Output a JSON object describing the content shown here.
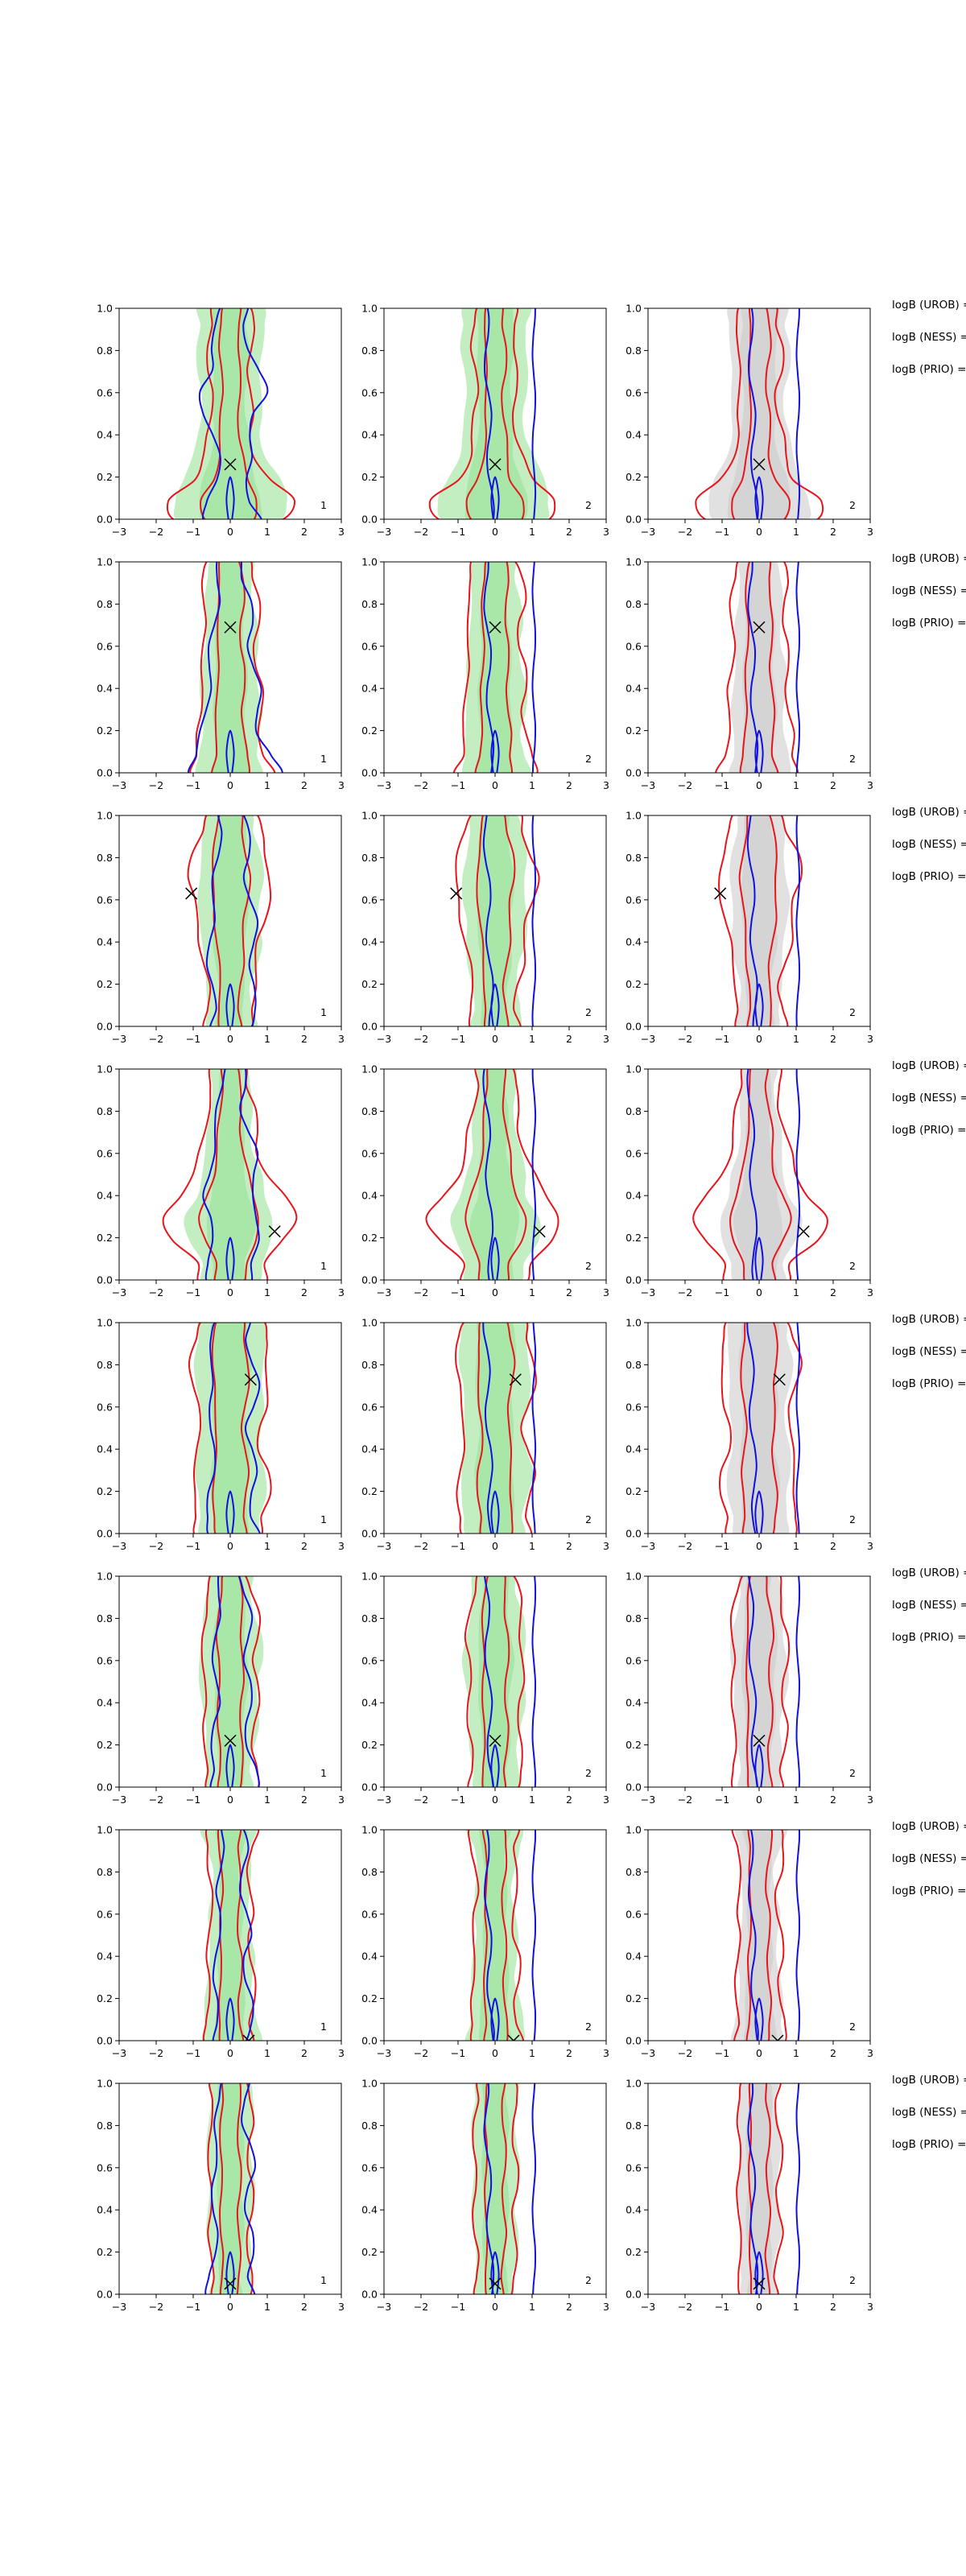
{
  "figure": {
    "rows": 8,
    "cols": 3
  },
  "chart_data": [
    {
      "type": "contour",
      "row": 1,
      "x_ticks": [
        "−3",
        "−2",
        "−1",
        "0",
        "1",
        "2",
        "3"
      ],
      "y_ticks": [
        "0.0",
        "0.2",
        "0.4",
        "0.6",
        "0.8",
        "1.0"
      ],
      "xlim": [
        -3,
        3
      ],
      "ylim": [
        0,
        1
      ],
      "marker": {
        "symbol": "X",
        "x": 0.0,
        "y": 0.26
      },
      "panel_labels": [
        "1",
        "2",
        "2"
      ],
      "side_labels": [
        "logB (UROB) =",
        "logB (NESS) =",
        "logB (PRIO) ="
      ]
    },
    {
      "type": "contour",
      "row": 2,
      "x_ticks": [
        "−3",
        "−2",
        "−1",
        "0",
        "1",
        "2",
        "3"
      ],
      "y_ticks": [
        "0.0",
        "0.2",
        "0.4",
        "0.6",
        "0.8",
        "1.0"
      ],
      "xlim": [
        -3,
        3
      ],
      "ylim": [
        0,
        1
      ],
      "marker": {
        "symbol": "X",
        "x": 0.0,
        "y": 0.69
      },
      "panel_labels": [
        "1",
        "2",
        "2"
      ],
      "side_labels": [
        "logB (UROB) =",
        "logB (NESS) =",
        "logB (PRIO) ="
      ]
    },
    {
      "type": "contour",
      "row": 3,
      "x_ticks": [
        "−3",
        "−2",
        "−1",
        "0",
        "1",
        "2",
        "3"
      ],
      "y_ticks": [
        "0.0",
        "0.2",
        "0.4",
        "0.6",
        "0.8",
        "1.0"
      ],
      "xlim": [
        -3,
        3
      ],
      "ylim": [
        0,
        1
      ],
      "marker": {
        "symbol": "X",
        "x": -1.05,
        "y": 0.63
      },
      "panel_labels": [
        "1",
        "2",
        "2"
      ],
      "side_labels": [
        "logB (UROB) =",
        "logB (NESS) =",
        "logB (PRIO) ="
      ]
    },
    {
      "type": "contour",
      "row": 4,
      "x_ticks": [
        "−3",
        "−2",
        "−1",
        "0",
        "1",
        "2",
        "3"
      ],
      "y_ticks": [
        "0.0",
        "0.2",
        "0.4",
        "0.6",
        "0.8",
        "1.0"
      ],
      "xlim": [
        -3,
        3
      ],
      "ylim": [
        0,
        1
      ],
      "marker": {
        "symbol": "X",
        "x": 1.2,
        "y": 0.23
      },
      "panel_labels": [
        "1",
        "2",
        "2"
      ],
      "side_labels": [
        "logB (UROB) =",
        "logB (NESS) =",
        "logB (PRIO) ="
      ]
    },
    {
      "type": "contour",
      "row": 5,
      "x_ticks": [
        "−3",
        "−2",
        "−1",
        "0",
        "1",
        "2",
        "3"
      ],
      "y_ticks": [
        "0.0",
        "0.2",
        "0.4",
        "0.6",
        "0.8",
        "1.0"
      ],
      "xlim": [
        -3,
        3
      ],
      "ylim": [
        0,
        1
      ],
      "marker": {
        "symbol": "X",
        "x": 0.55,
        "y": 0.73
      },
      "panel_labels": [
        "1",
        "2",
        "2"
      ],
      "side_labels": [
        "logB (UROB) =",
        "logB (NESS) =",
        "logB (PRIO) ="
      ]
    },
    {
      "type": "contour",
      "row": 6,
      "x_ticks": [
        "−3",
        "−2",
        "−1",
        "0",
        "1",
        "2",
        "3"
      ],
      "y_ticks": [
        "0.0",
        "0.2",
        "0.4",
        "0.6",
        "0.8",
        "1.0"
      ],
      "xlim": [
        -3,
        3
      ],
      "ylim": [
        0,
        1
      ],
      "marker": {
        "symbol": "X",
        "x": 0.0,
        "y": 0.22
      },
      "panel_labels": [
        "1",
        "2",
        "2"
      ],
      "side_labels": [
        "logB (UROB) =",
        "logB (NESS) =",
        "logB (PRIO) ="
      ]
    },
    {
      "type": "contour",
      "row": 7,
      "x_ticks": [
        "−3",
        "−2",
        "−1",
        "0",
        "1",
        "2",
        "3"
      ],
      "y_ticks": [
        "0.0",
        "0.2",
        "0.4",
        "0.6",
        "0.8",
        "1.0"
      ],
      "xlim": [
        -3,
        3
      ],
      "ylim": [
        0,
        1
      ],
      "marker": {
        "symbol": "X",
        "x": 0.5,
        "y": 0.0
      },
      "panel_labels": [
        "1",
        "2",
        "2"
      ],
      "side_labels": [
        "logB (UROB) =",
        "logB (NESS) =",
        "logB (PRIO) ="
      ]
    },
    {
      "type": "contour",
      "row": 8,
      "x_ticks": [
        "−3",
        "−2",
        "−1",
        "0",
        "1",
        "2",
        "3"
      ],
      "y_ticks": [
        "0.0",
        "0.2",
        "0.4",
        "0.6",
        "0.8",
        "1.0"
      ],
      "xlim": [
        -3,
        3
      ],
      "ylim": [
        0,
        1
      ],
      "marker": {
        "symbol": "X",
        "x": 0.0,
        "y": 0.05
      },
      "panel_labels": [
        "1",
        "2",
        "2"
      ],
      "side_labels": [
        "logB (UROB) =",
        "logB (NESS) =",
        "logB (PRIO) ="
      ]
    }
  ],
  "colors": {
    "red_contour": "#e8141c",
    "blue_contour": "#1010e0",
    "green_fill": "#90e090",
    "grey_fill": "#c8c8c8",
    "axis": "#000000"
  }
}
